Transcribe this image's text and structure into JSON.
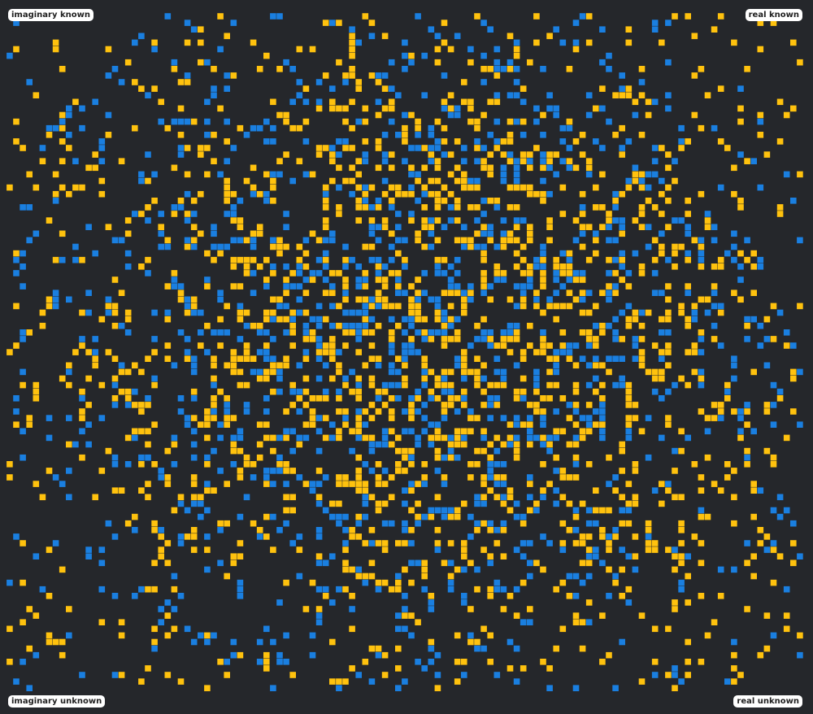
{
  "labels": {
    "top_left": "imaginary known",
    "top_right": "real known",
    "bottom_left": "imaginary unknown",
    "bottom_right": "real unknown"
  },
  "colors": {
    "background": "#25272b",
    "blue": "#1a7fe0",
    "yellow": "#ffc20e"
  },
  "chart_data": {
    "type": "heatmap",
    "x_axis_left": "imaginary",
    "x_axis_right": "real",
    "y_axis_top": "known",
    "y_axis_bottom": "unknown",
    "series": [
      {
        "color": "#1a7fe0"
      },
      {
        "color": "#ffc20e"
      }
    ]
  }
}
